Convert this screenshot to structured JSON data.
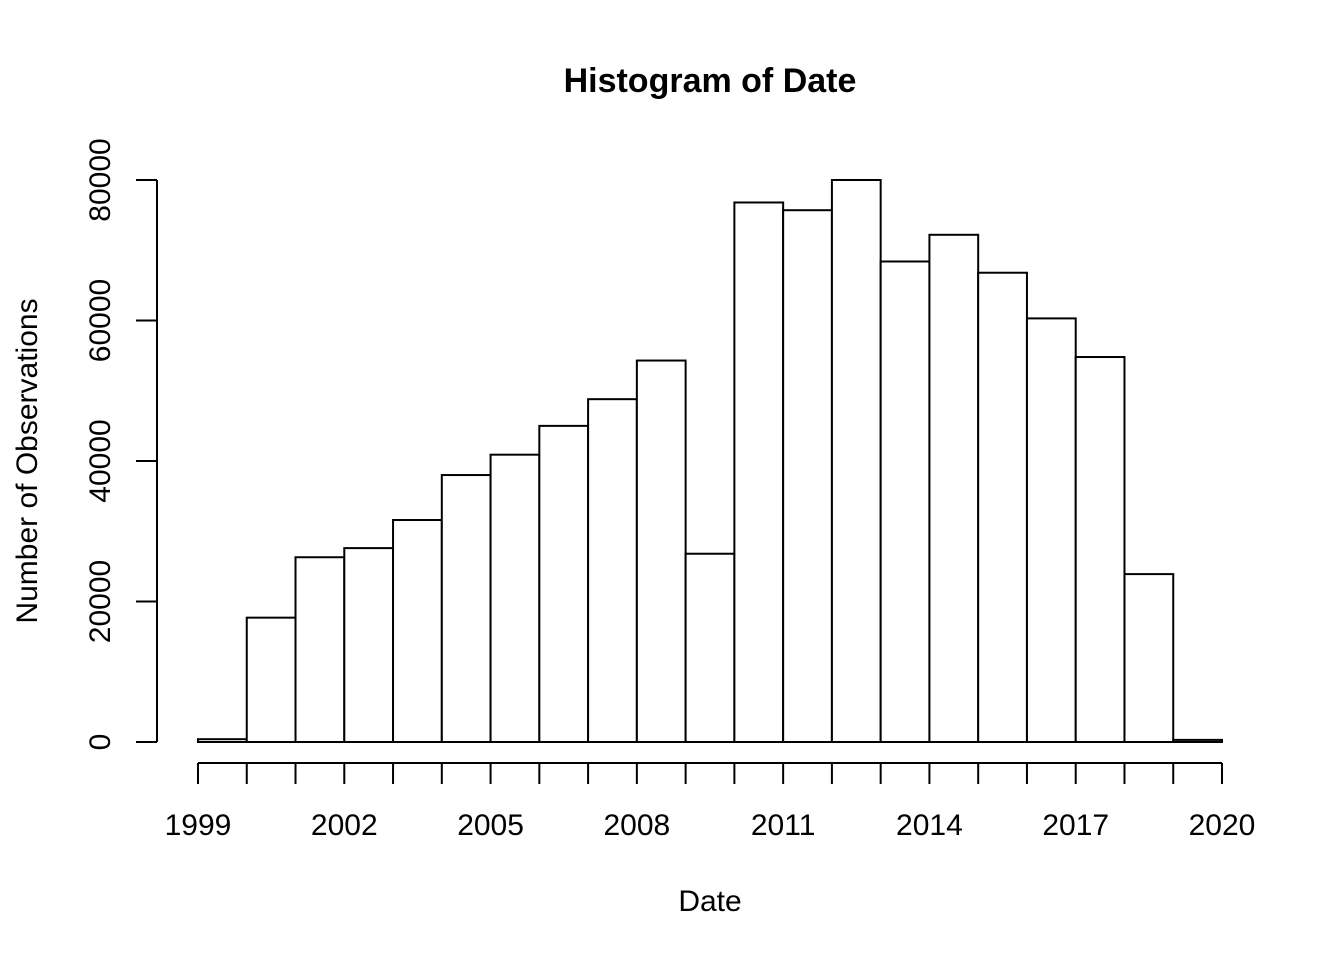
{
  "chart_data": {
    "type": "bar",
    "title": "Histogram of Date",
    "xlabel": "Date",
    "ylabel": "Number of Observations",
    "bin_edges": [
      1999,
      2000,
      2001,
      2002,
      2003,
      2004,
      2005,
      2006,
      2007,
      2008,
      2009,
      2010,
      2011,
      2012,
      2013,
      2014,
      2015,
      2016,
      2017,
      2018,
      2019,
      2020
    ],
    "values": [
      400,
      17700,
      26300,
      27600,
      31600,
      38000,
      40900,
      45000,
      48800,
      54300,
      26800,
      76800,
      75700,
      80000,
      68400,
      72200,
      66800,
      60300,
      54800,
      23900,
      300
    ],
    "xlim": [
      1999,
      2020
    ],
    "ylim": [
      0,
      80000
    ],
    "x_ticks": [
      "1999",
      "2002",
      "2005",
      "2008",
      "2011",
      "2014",
      "2017",
      "2020"
    ],
    "y_ticks": [
      "0",
      "20000",
      "40000",
      "60000",
      "80000"
    ],
    "grid": false,
    "legend": "none"
  }
}
